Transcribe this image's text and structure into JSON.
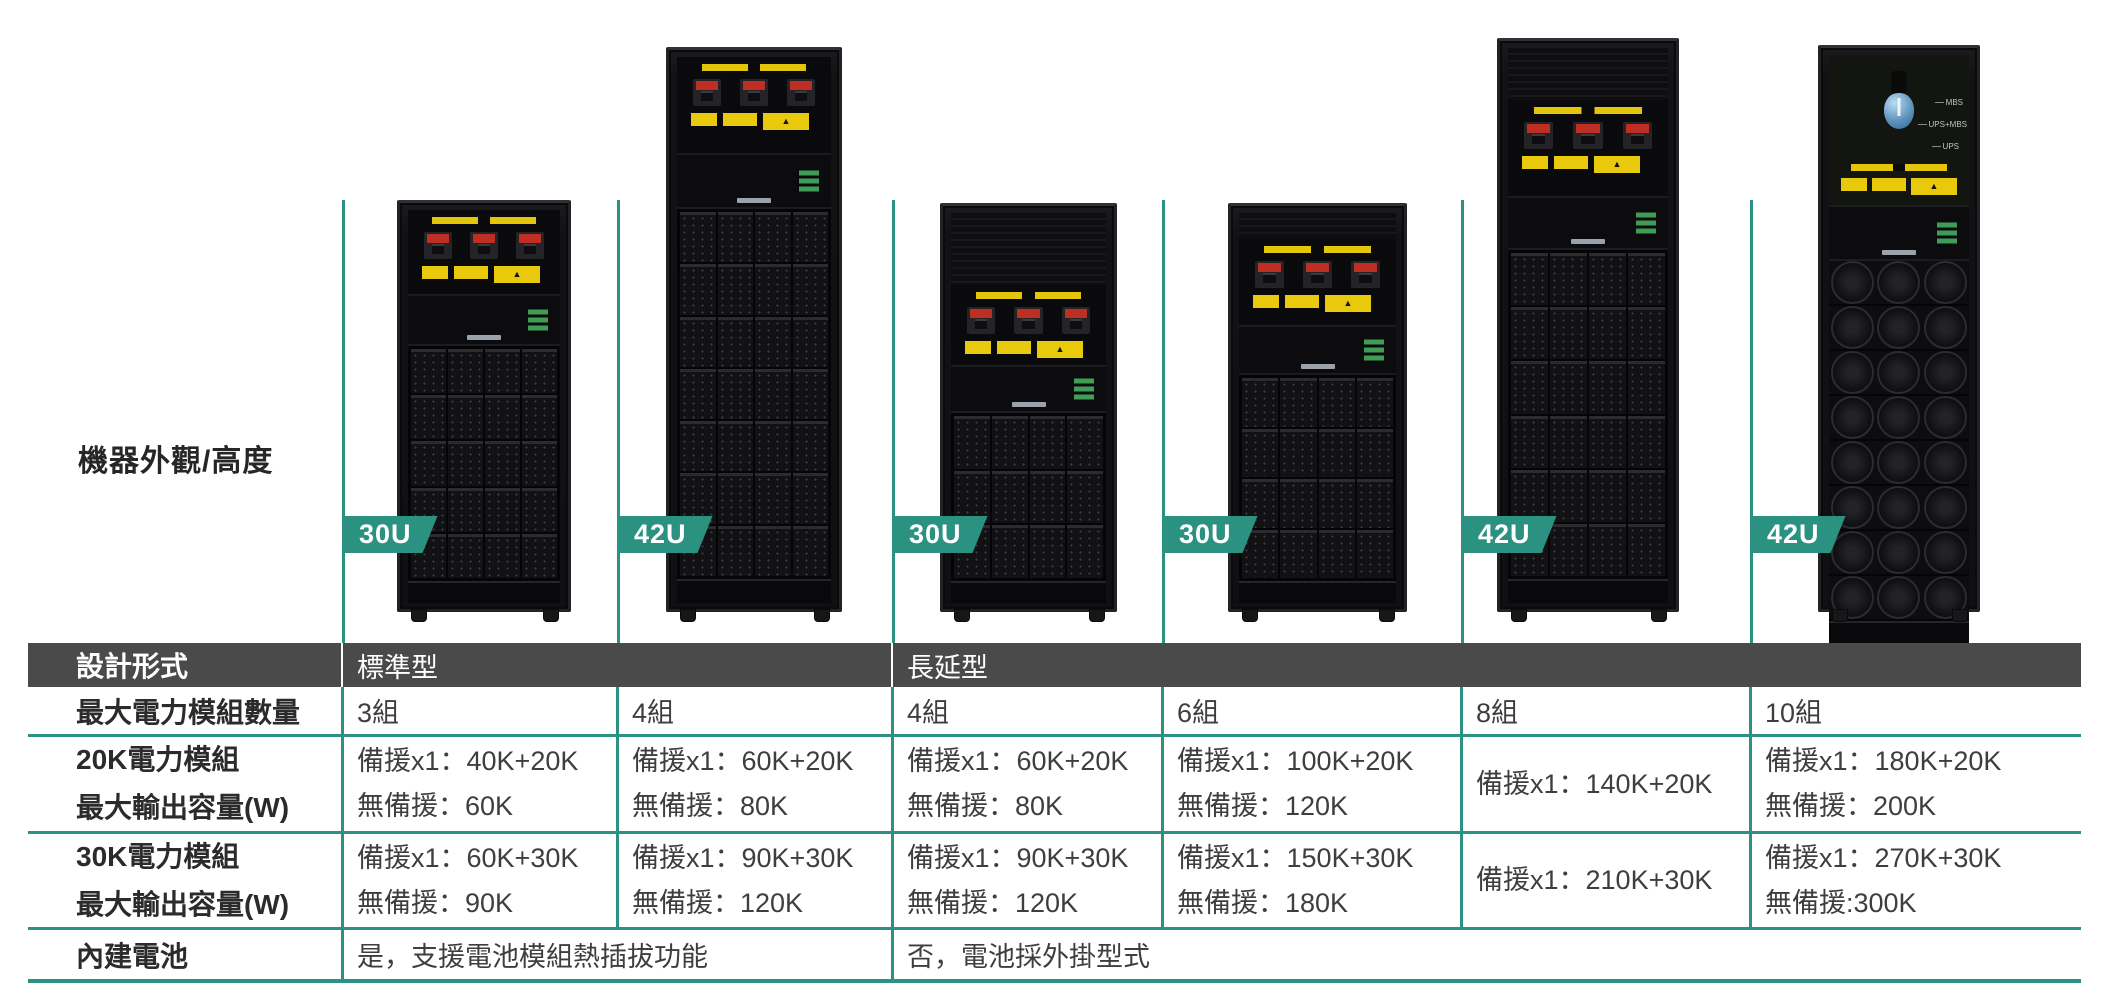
{
  "colors": {
    "accent_teal": "#2b9180",
    "header_bg": "#4a4a4b",
    "badge_text": "#ffffff"
  },
  "caption": {
    "appearance_height": "機器外觀/高度"
  },
  "badges": [
    "30U",
    "42U",
    "30U",
    "30U",
    "42U",
    "42U"
  ],
  "rack6_switch": {
    "mbs": "MBS",
    "ups_mbs": "UPS+MBS",
    "ups": "UPS"
  },
  "table": {
    "design": {
      "label": "設計形式",
      "standard": "標準型",
      "long": "長延型"
    },
    "max_modules": {
      "label": "最大電力模組數量",
      "values": [
        "3組",
        "4組",
        "4組",
        "6組",
        "8組",
        "10組"
      ]
    },
    "cap20k": {
      "label1": "20K電力模組",
      "label2": "最大輸出容量(W)",
      "values": [
        {
          "l1": "備援x1：40K+20K",
          "l2": "無備援：60K"
        },
        {
          "l1": "備援x1：60K+20K",
          "l2": "無備援：80K"
        },
        {
          "l1": "備援x1：60K+20K",
          "l2": "無備援：80K"
        },
        {
          "l1": "備援x1：100K+20K",
          "l2": "無備援：120K"
        },
        {
          "l1": "備援x1：140K+20K",
          "l2": ""
        },
        {
          "l1": "備援x1：180K+20K",
          "l2": "無備援：200K"
        }
      ]
    },
    "cap30k": {
      "label1": "30K電力模組",
      "label2": "最大輸出容量(W)",
      "values": [
        {
          "l1": "備援x1：60K+30K",
          "l2": "無備援：90K"
        },
        {
          "l1": "備援x1：90K+30K",
          "l2": "無備援：120K"
        },
        {
          "l1": "備援x1：90K+30K",
          "l2": "無備援：120K"
        },
        {
          "l1": "備援x1：150K+30K",
          "l2": "無備援：180K"
        },
        {
          "l1": "備援x1：210K+30K",
          "l2": ""
        },
        {
          "l1": "備援x1：270K+30K",
          "l2": "無備援:300K"
        }
      ]
    },
    "battery": {
      "label": "內建電池",
      "standard": "是，支援電池模組熱插拔功能",
      "long": "否，電池採外掛型式"
    }
  }
}
